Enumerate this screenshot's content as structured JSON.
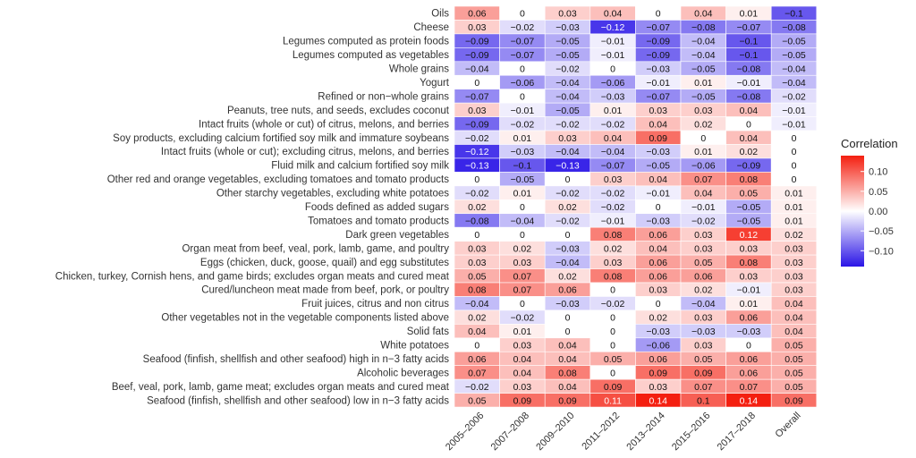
{
  "chart_data": {
    "type": "heatmap",
    "columns": [
      "2005–2006",
      "2007–2008",
      "2009–2010",
      "2011–2012",
      "2013–2014",
      "2015–2016",
      "2017–2018",
      "Overall"
    ],
    "rows": [
      "Oils",
      "Cheese",
      "Legumes computed as protein foods",
      "Legumes computed as vegetables",
      "Whole grains",
      "Yogurt",
      "Refined or non−whole grains",
      "Peanuts, tree nuts, and seeds, excludes coconut",
      "Intact fruits (whole or cut) of citrus, melons, and berries",
      "Soy products, excluding calcium fortified soy milk and immature soybeans",
      "Intact fruits (whole or cut); excluding citrus, melons, and berries",
      "Fluid milk and calcium fortified soy milk",
      "Other red and orange vegetables, excluding tomatoes and tomato products",
      "Other starchy vegetables, excluding white potatoes",
      "Foods defined as added sugars",
      "Tomatoes and tomato products",
      "Dark green vegetables",
      "Organ meat from beef, veal, pork, lamb, game, and poultry",
      "Eggs (chicken, duck, goose, quail) and egg substitutes",
      "Chicken, turkey, Cornish hens, and game birds; excludes organ meats and cured meat",
      "Cured/luncheon meat made from beef, pork, or poultry",
      "Fruit juices, citrus and non citrus",
      "Other vegetables not in the vegetable components listed above",
      "Solid fats",
      "White potatoes",
      "Seafood (finfish, shellfish and other seafood) high in n−3 fatty acids",
      "Alcoholic beverages",
      "Beef, veal, pork, lamb, game meat; excludes organ meats and cured meat",
      "Seafood (finfish, shellfish and other seafood) low in n−3 fatty acids"
    ],
    "values": [
      [
        "0.06",
        "0",
        "0.03",
        "0.04",
        "0",
        "0.04",
        "0.01",
        "−0.1"
      ],
      [
        "0.03",
        "−0.02",
        "−0.03",
        "−0.12",
        "−0.07",
        "−0.08",
        "−0.07",
        "−0.08"
      ],
      [
        "−0.09",
        "−0.07",
        "−0.05",
        "−0.01",
        "−0.09",
        "−0.04",
        "−0.1",
        "−0.05"
      ],
      [
        "−0.09",
        "−0.07",
        "−0.05",
        "−0.01",
        "−0.09",
        "−0.04",
        "−0.1",
        "−0.05"
      ],
      [
        "−0.04",
        "0",
        "−0.02",
        "0",
        "−0.03",
        "−0.05",
        "−0.08",
        "−0.04"
      ],
      [
        "0",
        "−0.06",
        "−0.04",
        "−0.06",
        "−0.01",
        "0.01",
        "−0.01",
        "−0.04"
      ],
      [
        "−0.07",
        "0",
        "−0.04",
        "−0.03",
        "−0.07",
        "−0.05",
        "−0.08",
        "−0.02"
      ],
      [
        "0.03",
        "−0.01",
        "−0.05",
        "0.01",
        "0.03",
        "0.03",
        "0.04",
        "−0.01"
      ],
      [
        "−0.09",
        "−0.02",
        "−0.02",
        "−0.02",
        "0.04",
        "0.02",
        "0",
        "−0.01"
      ],
      [
        "−0.02",
        "0.01",
        "0.03",
        "0.04",
        "0.09",
        "0",
        "0.04",
        "0"
      ],
      [
        "−0.12",
        "−0.03",
        "−0.04",
        "−0.04",
        "−0.03",
        "0.01",
        "0.02",
        "0"
      ],
      [
        "−0.13",
        "−0.1",
        "−0.13",
        "−0.07",
        "−0.05",
        "−0.06",
        "−0.09",
        "0"
      ],
      [
        "0",
        "−0.05",
        "0",
        "0.03",
        "0.04",
        "0.07",
        "0.08",
        "0"
      ],
      [
        "−0.02",
        "0.01",
        "−0.02",
        "−0.02",
        "−0.01",
        "0.04",
        "0.05",
        "0.01"
      ],
      [
        "0.02",
        "0",
        "0.02",
        "−0.02",
        "0",
        "−0.01",
        "−0.05",
        "0.01"
      ],
      [
        "−0.08",
        "−0.04",
        "−0.02",
        "−0.01",
        "−0.03",
        "−0.02",
        "−0.05",
        "0.01"
      ],
      [
        "0",
        "0",
        "0",
        "0.08",
        "0.06",
        "0.03",
        "0.12",
        "0.02"
      ],
      [
        "0.03",
        "0.02",
        "−0.03",
        "0.02",
        "0.04",
        "0.03",
        "0.03",
        "0.03"
      ],
      [
        "0.03",
        "0.03",
        "−0.04",
        "0.03",
        "0.06",
        "0.05",
        "0.08",
        "0.03"
      ],
      [
        "0.05",
        "0.07",
        "0.02",
        "0.08",
        "0.06",
        "0.06",
        "0.03",
        "0.03"
      ],
      [
        "0.08",
        "0.07",
        "0.06",
        "0",
        "0.03",
        "0.02",
        "−0.01",
        "0.03"
      ],
      [
        "−0.04",
        "0",
        "−0.03",
        "−0.02",
        "0",
        "−0.04",
        "0.01",
        "0.04"
      ],
      [
        "0.02",
        "−0.02",
        "0",
        "0",
        "0.02",
        "0.03",
        "0.06",
        "0.04"
      ],
      [
        "0.04",
        "0.01",
        "0",
        "0",
        "−0.03",
        "−0.03",
        "−0.03",
        "0.04"
      ],
      [
        "0",
        "0.03",
        "0.04",
        "0",
        "−0.06",
        "0.03",
        "0",
        "0.05"
      ],
      [
        "0.06",
        "0.04",
        "0.04",
        "0.05",
        "0.06",
        "0.05",
        "0.06",
        "0.05"
      ],
      [
        "0.07",
        "0.04",
        "0.08",
        "0",
        "0.09",
        "0.09",
        "0.06",
        "0.05"
      ],
      [
        "−0.02",
        "0.03",
        "0.04",
        "0.09",
        "0.03",
        "0.07",
        "0.07",
        "0.05"
      ],
      [
        "0.05",
        "0.09",
        "0.09",
        "0.11",
        "0.14",
        "0.1",
        "0.14",
        "0.09"
      ]
    ],
    "legend": {
      "title": "Correlation",
      "ticks": [
        "0.10",
        "0.05",
        "0.00",
        "−0.05",
        "−0.10"
      ],
      "tick_values": [
        0.1,
        0.05,
        0.0,
        -0.05,
        -0.1
      ],
      "range": [
        -0.14,
        0.14
      ],
      "placement": "right"
    },
    "colors": {
      "low": "#2a14e6",
      "mid": "#ffffff",
      "high": "#f41f10"
    }
  }
}
